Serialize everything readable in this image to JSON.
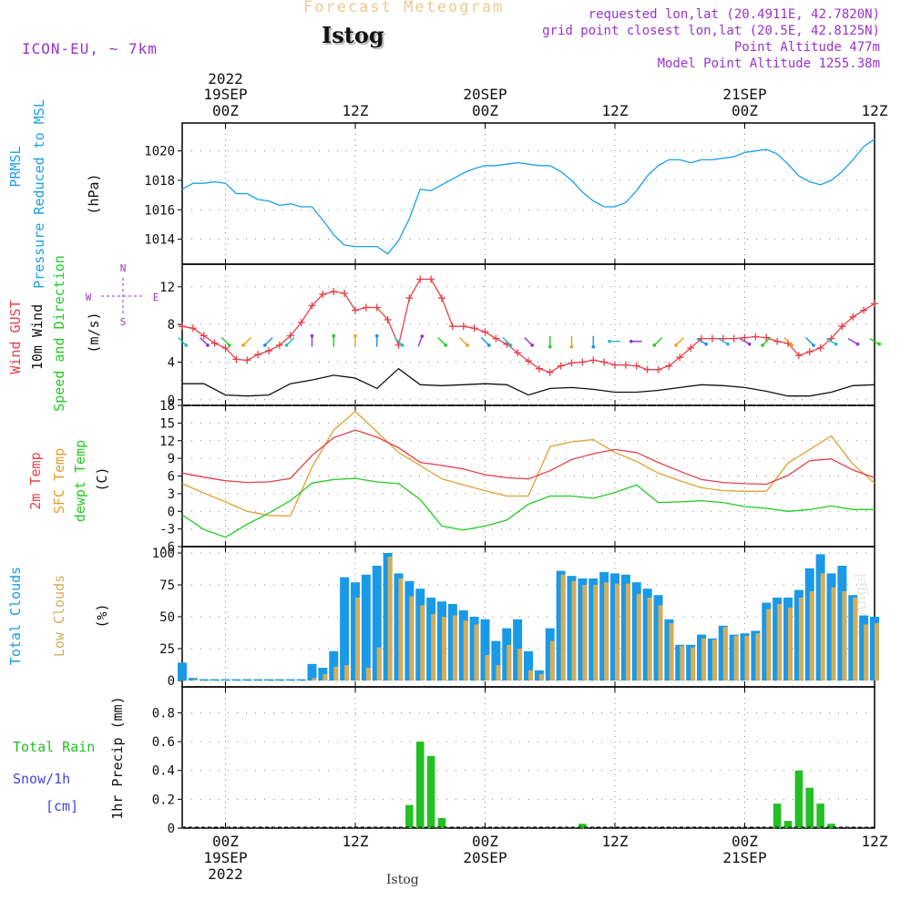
{
  "header": {
    "title": "Forecast Meteogram",
    "station": "Istog",
    "model": "ICON-EU, ~ 7km",
    "requested": "requested lon,lat (20.4911E, 42.7820N)",
    "grid_point": "grid point closest lon,lat (20.5E, 42.8125N)",
    "point_altitude": "Point Altitude 477m",
    "model_altitude": "Model Point Altitude 1255.38m",
    "watermark": "by Angel",
    "footer_station": "Istog"
  },
  "colors": {
    "prmsl": "#1aa0e8",
    "gust": "#e8404a",
    "wind": "#111111",
    "wind_dir_label": "#22cc22",
    "temp2m": "#e8404a",
    "sfc_temp": "#e0a030",
    "dewpt": "#22cc22",
    "total_clouds": "#1a9ae6",
    "low_clouds": "#d4ad5a",
    "rain": "#22c022",
    "snow": "#4444dd",
    "meta": "#9933cc",
    "title": "#f0c890"
  },
  "time_axis": {
    "top_labels": [
      {
        "line1": "2022",
        "line2": "19SEP",
        "line3": "00Z"
      },
      {
        "line1": "",
        "line2": "",
        "line3": "12Z"
      },
      {
        "line1": "",
        "line2": "20SEP",
        "line3": "00Z"
      },
      {
        "line1": "",
        "line2": "",
        "line3": "12Z"
      },
      {
        "line1": "",
        "line2": "21SEP",
        "line3": "00Z"
      },
      {
        "line1": "",
        "line2": "",
        "line3": "12Z"
      }
    ],
    "bottom_labels": [
      {
        "line1": "00Z",
        "line2": "19SEP",
        "line3": "2022"
      },
      {
        "line1": "12Z",
        "line2": "",
        "line3": ""
      },
      {
        "line1": "00Z",
        "line2": "20SEP",
        "line3": ""
      },
      {
        "line1": "12Z",
        "line2": "",
        "line3": ""
      },
      {
        "line1": "00Z",
        "line2": "21SEP",
        "line3": ""
      },
      {
        "line1": "12Z",
        "line2": "",
        "line3": ""
      }
    ]
  },
  "chart_data": [
    {
      "type": "line",
      "panel": "pressure",
      "labels": [
        "PRMSL",
        "Pressure Reduced to MSL"
      ],
      "ylabel": "(hPa)",
      "ylim": [
        1012.3,
        1021.9
      ],
      "yticks": [
        "1014",
        "1016",
        "1018",
        "1020"
      ],
      "yticks_values": [
        1014,
        1016,
        1018,
        1020
      ],
      "xlim_hours": [
        -4,
        60
      ],
      "series": [
        {
          "name": "PRMSL",
          "x": [
            -4,
            -3,
            -2,
            -1,
            0,
            1,
            2,
            3,
            4,
            5,
            6,
            7,
            8,
            9,
            10,
            11,
            12,
            13,
            14,
            15,
            16,
            17,
            18,
            19,
            20,
            21,
            22,
            23,
            24,
            25,
            26,
            27,
            28,
            29,
            30,
            31,
            32,
            33,
            34,
            35,
            36,
            37,
            38,
            39,
            40,
            41,
            42,
            43,
            44,
            45,
            46,
            47,
            48,
            49,
            50,
            51,
            52,
            53,
            54,
            55,
            56,
            57,
            58,
            59,
            60
          ],
          "values": [
            1017.4,
            1017.8,
            1017.8,
            1017.9,
            1017.8,
            1017.1,
            1017.1,
            1016.7,
            1016.6,
            1016.3,
            1016.4,
            1016.2,
            1016.2,
            1015.3,
            1014.3,
            1013.6,
            1013.5,
            1013.5,
            1013.5,
            1013.0,
            1013.9,
            1015.4,
            1017.4,
            1017.3,
            1017.7,
            1018.1,
            1018.5,
            1018.8,
            1019.0,
            1019.0,
            1019.1,
            1019.2,
            1019.1,
            1019.0,
            1019.0,
            1018.6,
            1018.0,
            1017.2,
            1016.6,
            1016.2,
            1016.2,
            1016.5,
            1017.3,
            1018.3,
            1019.0,
            1019.4,
            1019.4,
            1019.2,
            1019.4,
            1019.4,
            1019.5,
            1019.6,
            1019.9,
            1020.0,
            1020.1,
            1019.8,
            1019.1,
            1018.3,
            1017.9,
            1017.7,
            1018.0,
            1018.6,
            1019.4,
            1020.3,
            1020.8
          ]
        }
      ]
    },
    {
      "type": "line",
      "panel": "wind",
      "labels": [
        "Wind GUST",
        "10m Wind",
        "Speed and Direction"
      ],
      "ylabel": "(m/s)",
      "ylim": [
        -0.6,
        14.4
      ],
      "yticks": [
        "0",
        "4",
        "8",
        "12"
      ],
      "yticks_values": [
        0,
        4,
        8,
        12
      ],
      "compass": {
        "n": "N",
        "s": "S",
        "e": "E",
        "w": "W"
      },
      "series": [
        {
          "name": "Wind GUST",
          "x": [
            -4,
            -3,
            -2,
            -1,
            0,
            1,
            2,
            3,
            4,
            5,
            6,
            7,
            8,
            9,
            10,
            11,
            12,
            13,
            14,
            15,
            16,
            17,
            18,
            19,
            20,
            21,
            22,
            23,
            24,
            25,
            26,
            27,
            28,
            29,
            30,
            31,
            32,
            33,
            34,
            35,
            36,
            37,
            38,
            39,
            40,
            41,
            42,
            43,
            44,
            45,
            46,
            47,
            48,
            49,
            50,
            51,
            52,
            53,
            54,
            55,
            56,
            57,
            58,
            59,
            60
          ],
          "values": [
            7.8,
            7.6,
            6.8,
            6.0,
            5.5,
            4.3,
            4.2,
            4.8,
            5.2,
            5.8,
            6.8,
            8.2,
            10.0,
            11.2,
            11.5,
            11.3,
            9.5,
            9.8,
            9.8,
            8.5,
            5.8,
            10.8,
            12.8,
            12.8,
            10.8,
            7.8,
            7.8,
            7.6,
            7.2,
            6.5,
            5.9,
            5.0,
            4.1,
            3.3,
            2.9,
            3.6,
            3.9,
            4.0,
            4.2,
            4.0,
            3.7,
            3.7,
            3.6,
            3.2,
            3.2,
            3.6,
            4.5,
            5.5,
            6.5,
            6.5,
            6.5,
            6.5,
            6.6,
            6.7,
            6.6,
            6.2,
            6.0,
            4.7,
            5.1,
            5.5,
            6.5,
            7.8,
            8.8,
            9.5,
            10.2
          ]
        },
        {
          "name": "10m Wind",
          "x": [
            -4,
            -2,
            0,
            2,
            4,
            6,
            8,
            10,
            12,
            14,
            16,
            18,
            20,
            22,
            24,
            26,
            28,
            30,
            32,
            34,
            36,
            38,
            40,
            42,
            44,
            46,
            48,
            50,
            52,
            54,
            56,
            58,
            60
          ],
          "values": [
            1.7,
            1.7,
            0.5,
            0.4,
            0.5,
            1.7,
            2.1,
            2.6,
            2.3,
            1.2,
            3.3,
            1.6,
            1.5,
            1.6,
            1.7,
            1.6,
            0.5,
            1.2,
            1.3,
            1.1,
            0.8,
            0.8,
            1.0,
            1.3,
            1.6,
            1.5,
            1.3,
            0.9,
            0.4,
            0.4,
            0.8,
            1.5,
            1.6
          ]
        },
        {
          "name": "Wind Direction",
          "x": [
            -4,
            -2,
            0,
            2,
            4,
            6,
            8,
            10,
            12,
            14,
            16,
            18,
            20,
            22,
            24,
            26,
            28,
            30,
            32,
            34,
            36,
            38,
            40,
            42,
            44,
            46,
            48,
            50,
            52,
            54,
            56,
            58,
            60
          ],
          "direction_deg": [
            315,
            315,
            315,
            45,
            45,
            45,
            180,
            180,
            180,
            180,
            315,
            200,
            315,
            315,
            315,
            315,
            315,
            0,
            0,
            0,
            90,
            90,
            45,
            45,
            300,
            300,
            300,
            45,
            315,
            315,
            300,
            300,
            300
          ]
        }
      ]
    },
    {
      "type": "line",
      "panel": "temperature",
      "labels": [
        "2m Temp",
        "SFC Temp",
        "dewpt Temp"
      ],
      "ylabel": "(C)",
      "ylim": [
        -6,
        18
      ],
      "yticks": [
        "-6",
        "-3",
        "0",
        "3",
        "6",
        "9",
        "12",
        "15",
        "18"
      ],
      "yticks_values": [
        -6,
        -3,
        0,
        3,
        6,
        9,
        12,
        15,
        18
      ],
      "series": [
        {
          "name": "2m Temp",
          "x": [
            -4,
            -2,
            0,
            2,
            4,
            6,
            8,
            10,
            12,
            14,
            16,
            18,
            20,
            22,
            24,
            26,
            28,
            30,
            32,
            34,
            36,
            38,
            40,
            42,
            44,
            46,
            48,
            50,
            52,
            54,
            56,
            58,
            60
          ],
          "values": [
            6.5,
            5.8,
            5.2,
            4.9,
            5.0,
            5.6,
            9.5,
            12.5,
            13.8,
            12.6,
            10.8,
            8.3,
            7.8,
            7.2,
            6.2,
            5.7,
            5.5,
            6.9,
            8.8,
            9.8,
            10.5,
            10.0,
            8.3,
            6.8,
            5.4,
            4.9,
            4.7,
            4.6,
            6.1,
            8.6,
            8.9,
            7.0,
            5.7
          ]
        },
        {
          "name": "SFC Temp",
          "x": [
            -4,
            -2,
            0,
            2,
            4,
            6,
            8,
            10,
            12,
            14,
            16,
            18,
            20,
            22,
            24,
            26,
            28,
            30,
            32,
            34,
            36,
            38,
            40,
            42,
            44,
            46,
            48,
            50,
            52,
            54,
            56,
            58,
            60
          ],
          "values": [
            4.7,
            3.1,
            1.6,
            0.0,
            -0.7,
            -0.8,
            7.5,
            13.8,
            17.0,
            13.5,
            10.0,
            7.8,
            5.5,
            4.5,
            3.5,
            2.6,
            2.6,
            11.0,
            11.8,
            12.2,
            10.0,
            8.5,
            6.5,
            5.2,
            4.0,
            3.5,
            3.4,
            3.4,
            8.2,
            10.5,
            12.8,
            8.0,
            4.8
          ]
        },
        {
          "name": "dewpt Temp",
          "x": [
            -4,
            -2,
            0,
            2,
            4,
            6,
            8,
            10,
            12,
            14,
            16,
            18,
            20,
            22,
            24,
            26,
            28,
            30,
            32,
            34,
            36,
            38,
            40,
            42,
            44,
            46,
            48,
            50,
            52,
            54,
            56,
            58,
            60
          ],
          "values": [
            -0.6,
            -3.1,
            -4.4,
            -2.2,
            -0.3,
            1.8,
            4.8,
            5.4,
            5.6,
            5.0,
            4.7,
            2.0,
            -2.5,
            -3.2,
            -2.5,
            -1.5,
            1.2,
            2.6,
            2.6,
            2.2,
            3.2,
            4.5,
            1.5,
            1.6,
            1.8,
            1.5,
            0.8,
            0.5,
            0.0,
            0.3,
            0.9,
            0.3,
            0.3
          ]
        }
      ]
    },
    {
      "type": "bar",
      "panel": "clouds",
      "labels": [
        "Total Clouds",
        "Low Clouds"
      ],
      "ylabel": "(%)",
      "ylim": [
        -5,
        105
      ],
      "yticks": [
        "0",
        "25",
        "50",
        "75",
        "100"
      ],
      "yticks_values": [
        0,
        25,
        50,
        75,
        100
      ],
      "x": [
        -4,
        -3,
        -2,
        -1,
        0,
        1,
        2,
        3,
        4,
        5,
        6,
        7,
        8,
        9,
        10,
        11,
        12,
        13,
        14,
        15,
        16,
        17,
        18,
        19,
        20,
        21,
        22,
        23,
        24,
        25,
        26,
        27,
        28,
        29,
        30,
        31,
        32,
        33,
        34,
        35,
        36,
        37,
        38,
        39,
        40,
        41,
        42,
        43,
        44,
        45,
        46,
        47,
        48,
        49,
        50,
        51,
        52,
        53,
        54,
        55,
        56,
        57,
        58,
        59,
        60
      ],
      "series": [
        {
          "name": "Total Clouds",
          "values": [
            14,
            2,
            1,
            1,
            1,
            1,
            1,
            1,
            1,
            1,
            1,
            1,
            13,
            10,
            23,
            81,
            77,
            83,
            90,
            100,
            84,
            78,
            72,
            65,
            62,
            60,
            55,
            50,
            48,
            31,
            41,
            48,
            23,
            8,
            41,
            86,
            82,
            80,
            80,
            85,
            84,
            83,
            77,
            72,
            67,
            48,
            28,
            28,
            36,
            33,
            43,
            36,
            37,
            39,
            61,
            65,
            65,
            71,
            88,
            99,
            84,
            90,
            67,
            51,
            50
          ]
        },
        {
          "name": "Low Clouds",
          "values": [
            0,
            1,
            0,
            0,
            0,
            0,
            0,
            0,
            0,
            0,
            0,
            0,
            2,
            5,
            11,
            12,
            65,
            10,
            26,
            97,
            80,
            66,
            59,
            52,
            50,
            51,
            47,
            44,
            20,
            12,
            28,
            25,
            8,
            5,
            31,
            83,
            78,
            75,
            75,
            77,
            76,
            76,
            68,
            65,
            59,
            45,
            27,
            26,
            33,
            32,
            42,
            35,
            35,
            37,
            56,
            60,
            57,
            65,
            70,
            84,
            73,
            70,
            65,
            44,
            45
          ]
        }
      ]
    },
    {
      "type": "bar",
      "panel": "precip",
      "labels": [
        "Total  Rain",
        "Snow/1h",
        "[cm]"
      ],
      "ylabel": "1hr Precip (mm)",
      "ylim": [
        0,
        0.98
      ],
      "yticks": [
        "0",
        "0.2",
        "0.4",
        "0.6",
        "0.8"
      ],
      "yticks_values": [
        0,
        0.2,
        0.4,
        0.6,
        0.8
      ],
      "x": [
        17,
        18,
        19,
        20,
        33,
        51,
        52,
        53,
        54,
        55,
        56
      ],
      "series": [
        {
          "name": "Total Rain",
          "values": [
            0.16,
            0.6,
            0.5,
            0.07,
            0.03,
            0.17,
            0.05,
            0.4,
            0.28,
            0.17,
            0.03
          ]
        }
      ]
    }
  ]
}
